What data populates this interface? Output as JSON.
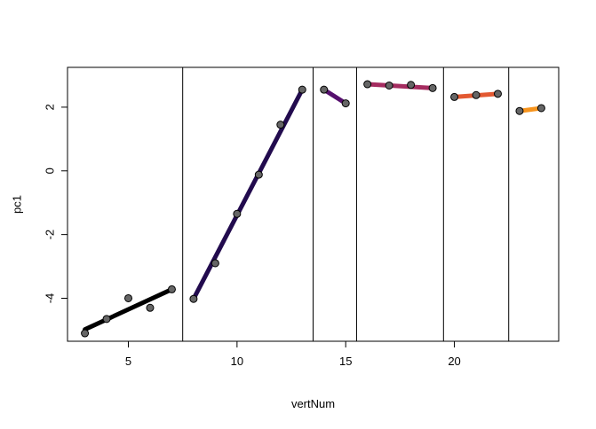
{
  "chart_data": {
    "type": "scatter",
    "title": "",
    "xlabel": "vertNum",
    "ylabel": "pc1",
    "xlim": [
      2.2,
      24.8
    ],
    "ylim": [
      -5.35,
      3.25
    ],
    "x_ticks": [
      5,
      10,
      15,
      20
    ],
    "y_ticks": [
      -4,
      -2,
      0,
      2
    ],
    "grid": false,
    "legend": "none",
    "point_color": "#666666",
    "point_edge": "#000000",
    "dividers": [
      7.5,
      13.5,
      15.5,
      19.5,
      22.5
    ],
    "segments": [
      {
        "color": "#000000",
        "x": [
          3,
          4,
          5,
          6,
          7
        ],
        "y": [
          -5.1,
          -4.65,
          -4.0,
          -4.3,
          -3.72
        ],
        "fit": [
          [
            3,
            -4.98
          ],
          [
            7,
            -3.72
          ]
        ]
      },
      {
        "color": "#220b4e",
        "x": [
          8,
          9,
          10,
          11,
          12,
          13
        ],
        "y": [
          -4.02,
          -2.9,
          -1.35,
          -0.12,
          1.45,
          2.55
        ],
        "fit": [
          [
            8,
            -4.02
          ],
          [
            13,
            2.55
          ]
        ]
      },
      {
        "color": "#56106e",
        "x": [
          14,
          15
        ],
        "y": [
          2.55,
          2.12
        ],
        "fit": [
          [
            14,
            2.55
          ],
          [
            15,
            2.12
          ]
        ]
      },
      {
        "color": "#a52c60",
        "x": [
          16,
          17,
          18,
          19
        ],
        "y": [
          2.72,
          2.68,
          2.7,
          2.6
        ],
        "fit": [
          [
            16,
            2.72
          ],
          [
            19,
            2.6
          ]
        ]
      },
      {
        "color": "#e35932",
        "x": [
          20,
          21,
          22
        ],
        "y": [
          2.32,
          2.38,
          2.42
        ],
        "fit": [
          [
            20,
            2.32
          ],
          [
            22,
            2.42
          ]
        ]
      },
      {
        "color": "#f7941d",
        "x": [
          23,
          24
        ],
        "y": [
          1.88,
          1.97
        ],
        "fit": [
          [
            23,
            1.88
          ],
          [
            24,
            1.97
          ]
        ]
      }
    ]
  }
}
